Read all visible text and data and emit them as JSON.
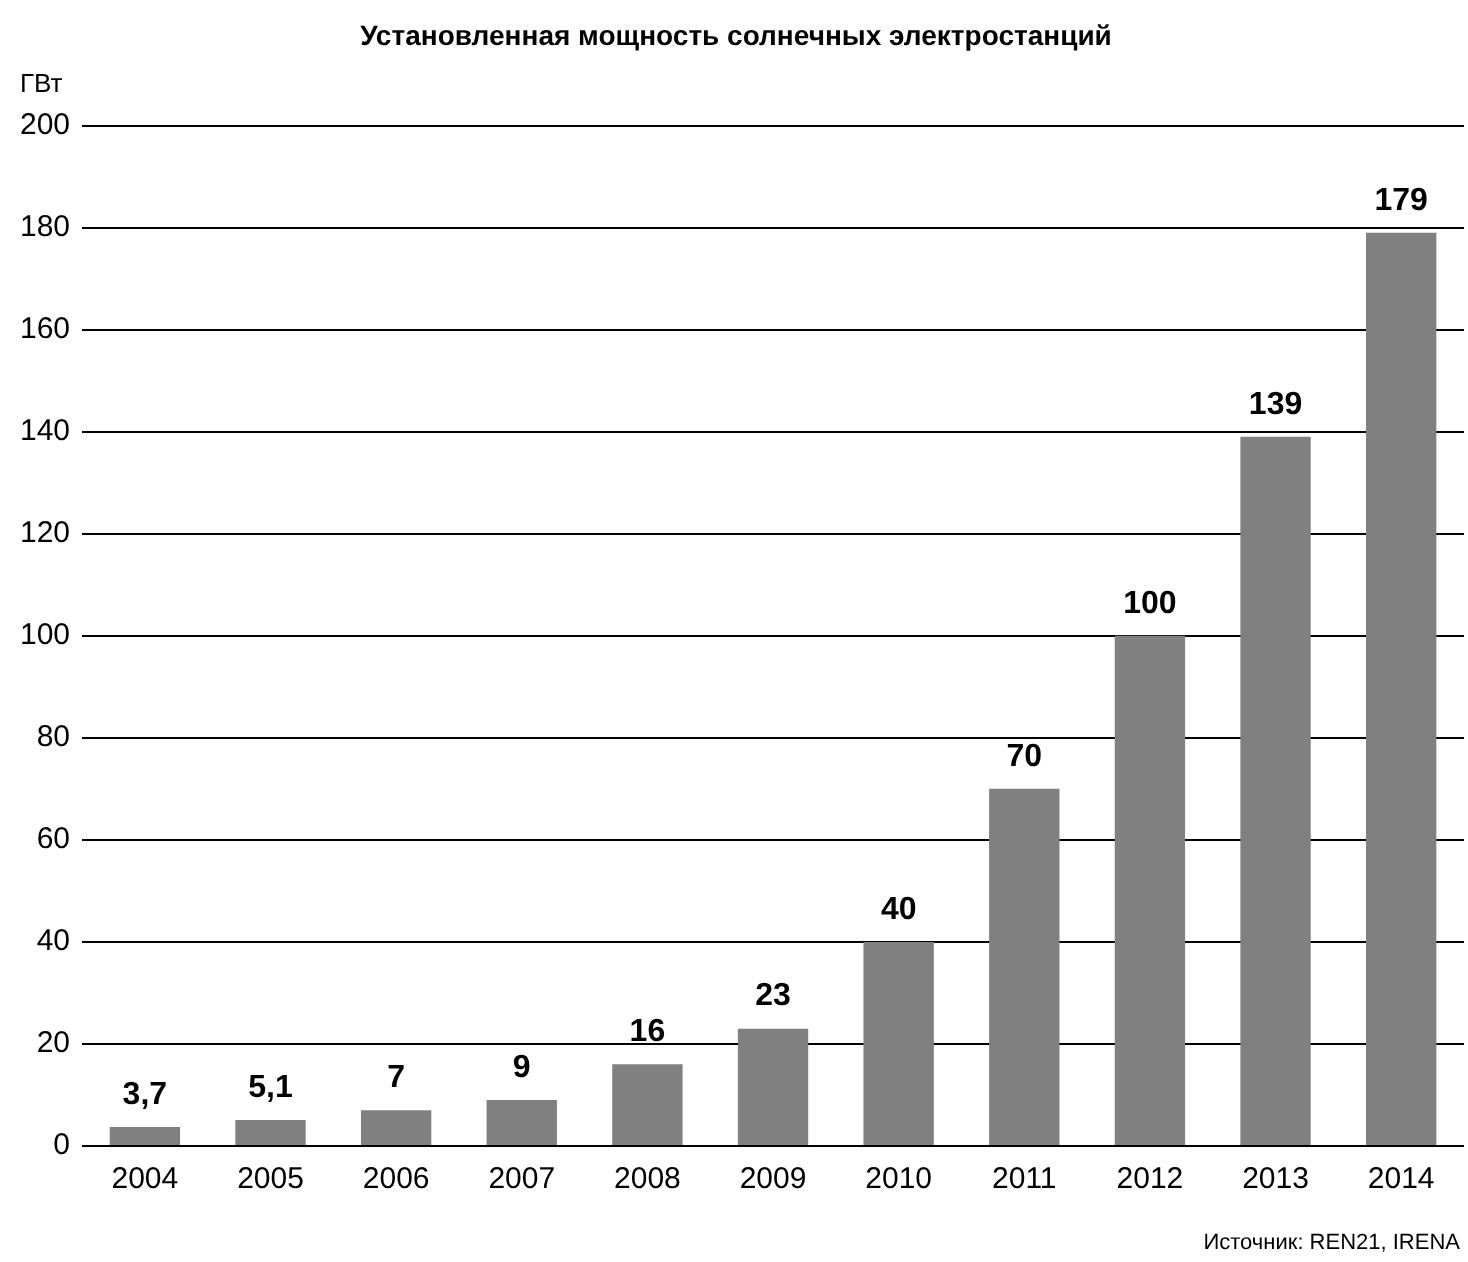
{
  "chart_data": {
    "type": "bar",
    "title": "Установленная мощность солнечных электростанций",
    "ylabel": "ГВт",
    "categories": [
      "2004",
      "2005",
      "2006",
      "2007",
      "2008",
      "2009",
      "2010",
      "2011",
      "2012",
      "2013",
      "2014"
    ],
    "values": [
      3.7,
      5.1,
      7,
      9,
      16,
      23,
      40,
      70,
      100,
      139,
      179
    ],
    "value_labels": [
      "3,7",
      "5,1",
      "7",
      "9",
      "16",
      "23",
      "40",
      "70",
      "100",
      "139",
      "179"
    ],
    "color": "#808080",
    "ylim": [
      0,
      200
    ],
    "yticks": [
      0,
      20,
      40,
      60,
      80,
      100,
      120,
      140,
      160,
      180,
      200
    ],
    "grid": "y",
    "legend": false,
    "annotations": [
      "Источник: REN21, IRENA"
    ]
  }
}
